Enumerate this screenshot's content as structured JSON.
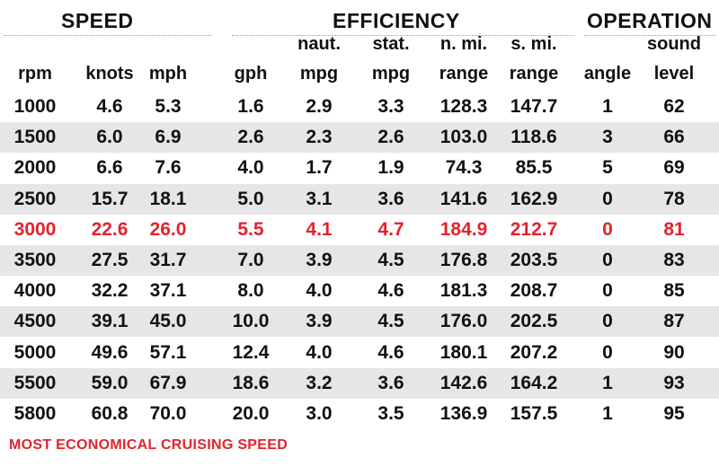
{
  "sections": {
    "speed": "SPEED",
    "efficiency": "EFFICIENCY",
    "operation": "OPERATION"
  },
  "headers": {
    "top": [
      "",
      "",
      "",
      "",
      "naut.",
      "stat.",
      "n. mi.",
      "s. mi.",
      "",
      "sound"
    ],
    "bottom": [
      "rpm",
      "knots",
      "mph",
      "gph",
      "mpg",
      "mpg",
      "range",
      "range",
      "angle",
      "level"
    ]
  },
  "rows": [
    {
      "cells": [
        "1000",
        "4.6",
        "5.3",
        "1.6",
        "2.9",
        "3.3",
        "128.3",
        "147.7",
        "1",
        "62"
      ],
      "highlight": false
    },
    {
      "cells": [
        "1500",
        "6.0",
        "6.9",
        "2.6",
        "2.3",
        "2.6",
        "103.0",
        "118.6",
        "3",
        "66"
      ],
      "highlight": false
    },
    {
      "cells": [
        "2000",
        "6.6",
        "7.6",
        "4.0",
        "1.7",
        "1.9",
        "74.3",
        "85.5",
        "5",
        "69"
      ],
      "highlight": false
    },
    {
      "cells": [
        "2500",
        "15.7",
        "18.1",
        "5.0",
        "3.1",
        "3.6",
        "141.6",
        "162.9",
        "0",
        "78"
      ],
      "highlight": false
    },
    {
      "cells": [
        "3000",
        "22.6",
        "26.0",
        "5.5",
        "4.1",
        "4.7",
        "184.9",
        "212.7",
        "0",
        "81"
      ],
      "highlight": true
    },
    {
      "cells": [
        "3500",
        "27.5",
        "31.7",
        "7.0",
        "3.9",
        "4.5",
        "176.8",
        "203.5",
        "0",
        "83"
      ],
      "highlight": false
    },
    {
      "cells": [
        "4000",
        "32.2",
        "37.1",
        "8.0",
        "4.0",
        "4.6",
        "181.3",
        "208.7",
        "0",
        "85"
      ],
      "highlight": false
    },
    {
      "cells": [
        "4500",
        "39.1",
        "45.0",
        "10.0",
        "3.9",
        "4.5",
        "176.0",
        "202.5",
        "0",
        "87"
      ],
      "highlight": false
    },
    {
      "cells": [
        "5000",
        "49.6",
        "57.1",
        "12.4",
        "4.0",
        "4.6",
        "180.1",
        "207.2",
        "0",
        "90"
      ],
      "highlight": false
    },
    {
      "cells": [
        "5500",
        "59.0",
        "67.9",
        "18.6",
        "3.2",
        "3.6",
        "142.6",
        "164.2",
        "1",
        "93"
      ],
      "highlight": false
    },
    {
      "cells": [
        "5800",
        "60.8",
        "70.0",
        "20.0",
        "3.0",
        "3.5",
        "136.9",
        "157.5",
        "1",
        "95"
      ],
      "highlight": false
    }
  ],
  "footnote": "MOST ECONOMICAL CRUISING SPEED",
  "colors": {
    "highlight": "#e3232c",
    "row_shade": "#e6e6e6",
    "text": "#111111"
  }
}
